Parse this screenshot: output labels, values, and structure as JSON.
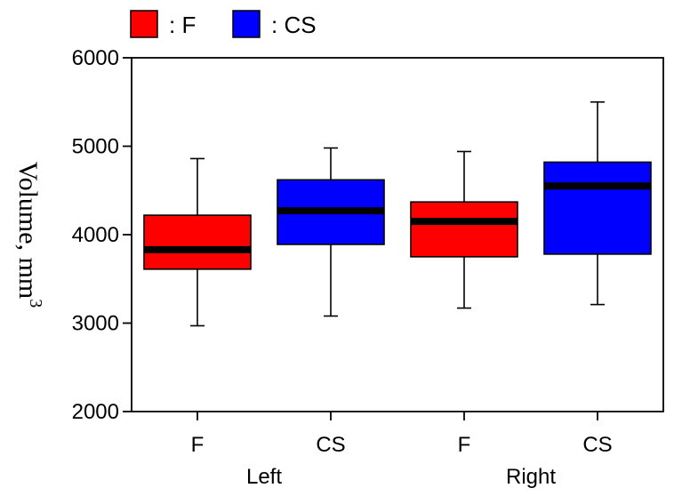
{
  "legend": [
    {
      "label": ": F",
      "color": "#ff0000"
    },
    {
      "label": ": CS",
      "color": "#0000ff"
    }
  ],
  "chart_data": {
    "type": "boxplot",
    "ylabel": "Volume, mm",
    "ylabel_superscript": "3",
    "ylim": [
      2000,
      6000
    ],
    "yticks": [
      "2000",
      "3000",
      "4000",
      "5000",
      "6000"
    ],
    "grid": false,
    "legend_position": "top-left",
    "groups": [
      {
        "label": "Left",
        "categories": [
          "F",
          "CS"
        ]
      },
      {
        "label": "Right",
        "categories": [
          "F",
          "CS"
        ]
      }
    ],
    "boxes": [
      {
        "group": "Left",
        "category": "F",
        "color": "#ff0000",
        "min": 2970,
        "q1": 3610,
        "median": 3830,
        "q3": 4220,
        "max": 4860
      },
      {
        "group": "Left",
        "category": "CS",
        "color": "#0000ff",
        "min": 3080,
        "q1": 3890,
        "median": 4270,
        "q3": 4620,
        "max": 4980
      },
      {
        "group": "Right",
        "category": "F",
        "color": "#ff0000",
        "min": 3170,
        "q1": 3750,
        "median": 4150,
        "q3": 4370,
        "max": 4940
      },
      {
        "group": "Right",
        "category": "CS",
        "color": "#0000ff",
        "min": 3210,
        "q1": 3780,
        "median": 4550,
        "q3": 4820,
        "max": 5500
      }
    ]
  }
}
